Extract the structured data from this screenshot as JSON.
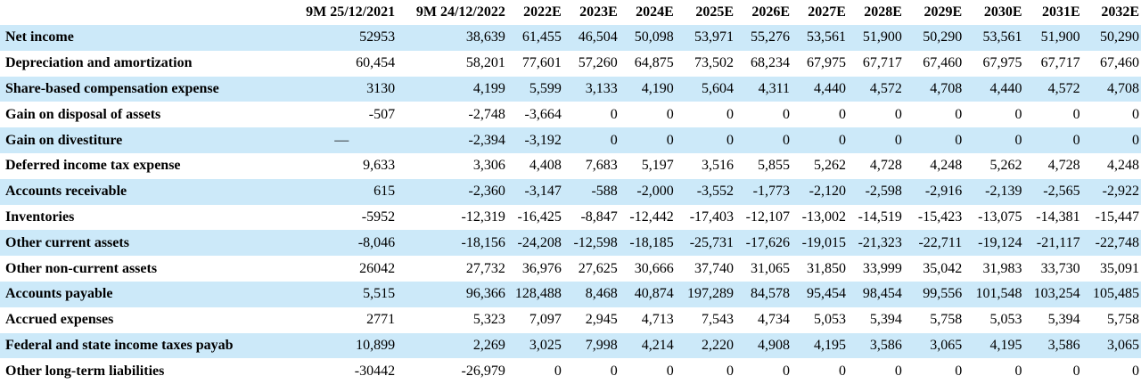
{
  "columns": [
    "9M 25/12/2021",
    "9M 24/12/2022",
    "2022E",
    "2023E",
    "2024E",
    "2025E",
    "2026E",
    "2027E",
    "2028E",
    "2029E",
    "2030E",
    "2031E",
    "2032E"
  ],
  "rows": [
    {
      "label": "Net income",
      "values": [
        "52953",
        "38,639",
        "61,455",
        "46,504",
        "50,098",
        "53,971",
        "55,276",
        "53,561",
        "51,900",
        "50,290",
        "53,561",
        "51,900",
        "50,290"
      ]
    },
    {
      "label": "Depreciation and amortization",
      "values": [
        "60,454",
        "58,201",
        "77,601",
        "57,260",
        "64,875",
        "73,502",
        "68,234",
        "67,975",
        "67,717",
        "67,460",
        "67,975",
        "67,717",
        "67,460"
      ]
    },
    {
      "label": "Share-based compensation expense",
      "values": [
        "3130",
        "4,199",
        "5,599",
        "3,133",
        "4,190",
        "5,604",
        "4,311",
        "4,440",
        "4,572",
        "4,708",
        "4,440",
        "4,572",
        "4,708"
      ]
    },
    {
      "label": "Gain on disposal of assets",
      "values": [
        "-507",
        "-2,748",
        "-3,664",
        "0",
        "0",
        "0",
        "0",
        "0",
        "0",
        "0",
        "0",
        "0",
        "0"
      ]
    },
    {
      "label": "Gain on divestiture",
      "values": [
        "—",
        "-2,394",
        "-3,192",
        "0",
        "0",
        "0",
        "0",
        "0",
        "0",
        "0",
        "0",
        "0",
        "0"
      ]
    },
    {
      "label": "Deferred income tax expense",
      "values": [
        "9,633",
        "3,306",
        "4,408",
        "7,683",
        "5,197",
        "3,516",
        "5,855",
        "5,262",
        "4,728",
        "4,248",
        "5,262",
        "4,728",
        "4,248"
      ]
    },
    {
      "label": "Accounts receivable",
      "values": [
        "615",
        "-2,360",
        "-3,147",
        "-588",
        "-2,000",
        "-3,552",
        "-1,773",
        "-2,120",
        "-2,598",
        "-2,916",
        "-2,139",
        "-2,565",
        "-2,922"
      ]
    },
    {
      "label": "Inventories",
      "values": [
        "-5952",
        "-12,319",
        "-16,425",
        "-8,847",
        "-12,442",
        "-17,403",
        "-12,107",
        "-13,002",
        "-14,519",
        "-15,423",
        "-13,075",
        "-14,381",
        "-15,447"
      ]
    },
    {
      "label": "Other current assets",
      "values": [
        "-8,046",
        "-18,156",
        "-24,208",
        "-12,598",
        "-18,185",
        "-25,731",
        "-17,626",
        "-19,015",
        "-21,323",
        "-22,711",
        "-19,124",
        "-21,117",
        "-22,748"
      ]
    },
    {
      "label": "Other non-current assets",
      "values": [
        "26042",
        "27,732",
        "36,976",
        "27,625",
        "30,666",
        "37,740",
        "31,065",
        "31,850",
        "33,999",
        "35,042",
        "31,983",
        "33,730",
        "35,091"
      ]
    },
    {
      "label": "Accounts payable",
      "values": [
        "5,515",
        "96,366",
        "128,488",
        "8,468",
        "40,874",
        "197,289",
        "84,578",
        "95,454",
        "98,454",
        "99,556",
        "101,548",
        "103,254",
        "105,485"
      ]
    },
    {
      "label": "Accrued expenses",
      "values": [
        "2771",
        "5,323",
        "7,097",
        "2,945",
        "4,713",
        "7,543",
        "4,734",
        "5,053",
        "5,394",
        "5,758",
        "5,053",
        "5,394",
        "5,758"
      ]
    },
    {
      "label": "Federal and state income taxes payab",
      "values": [
        "10,899",
        "2,269",
        "3,025",
        "7,998",
        "4,214",
        "2,220",
        "4,908",
        "4,195",
        "3,586",
        "3,065",
        "4,195",
        "3,586",
        "3,065"
      ]
    },
    {
      "label": "Other long-term liabilities",
      "values": [
        "-30442",
        "-26,979",
        "0",
        "0",
        "0",
        "0",
        "0",
        "0",
        "0",
        "0",
        "0",
        "0",
        "0"
      ]
    }
  ]
}
